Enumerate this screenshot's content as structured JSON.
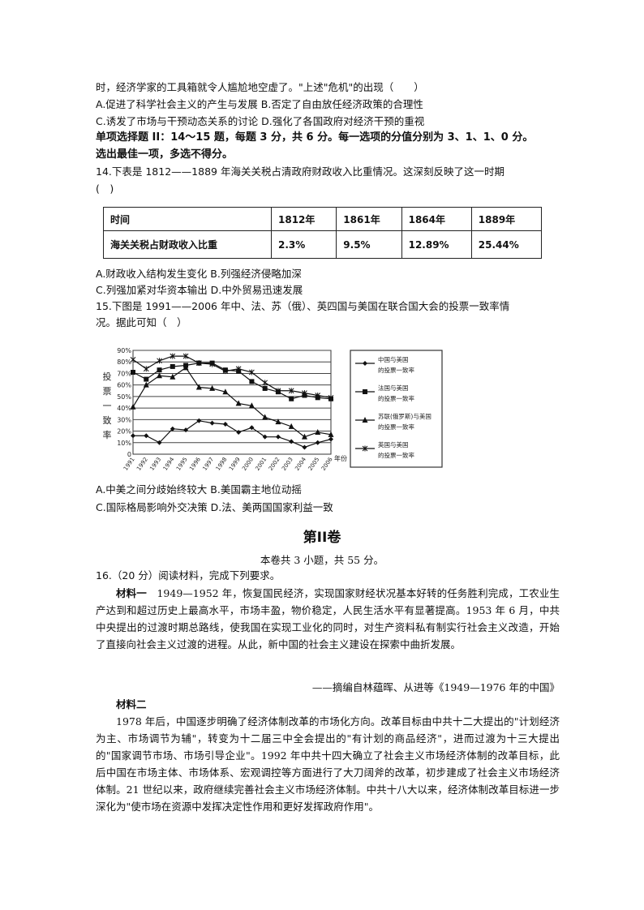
{
  "q13_tail": {
    "line": "时，经济学家的工具箱就令人尴尬地空虚了。\"上述\"危机\"的出现（　　）",
    "opt_ab": "A.促进了科学社会主义的产生与发展 B.否定了自由放任经济政策的合理性",
    "opt_cd": "C.诱发了市场与干预动态关系的讨论 D.强化了各国政府对经济干预的重视"
  },
  "section_ii": {
    "line1": "单项选择题 II：14～15 题，每题 3 分，共 6 分。每一选项的分值分别为 3、1、1、0 分。",
    "line2": "选出最佳一项，多选不得分。"
  },
  "q14": {
    "stem1": "14.下表是  1812——1889  年海关关税占清政府财政收入比重情况。这深刻反映了这一时期",
    "stem2": "(　)",
    "table": {
      "header": [
        "时间",
        "1812年",
        "1861年",
        "1864年",
        "1889年"
      ],
      "row": [
        "海关关税占财政收入比重",
        "2.3%",
        "9.5%",
        "12.89%",
        "25.44%"
      ]
    },
    "opt_ab": "A.财政收入结构发生变化 B.列强经济侵略加深",
    "opt_cd": "C.列强加紧对华资本输出 D.中外贸易迅速发展"
  },
  "q15": {
    "stem1": "15.下图是 1991——2006 年中、法、苏（俄）、英四国与美国在联合国大会的投票一致率情",
    "stem2": "况。据此可知（　）",
    "opt_ab": "A.中美之间分歧始终较大 B.美国霸主地位动摇",
    "opt_cd": "C.国际格局影响外交决策 D.法、美两国国家利益一致"
  },
  "chart_data": {
    "type": "line",
    "ylabel": "投票一致率",
    "xlabel": "年份",
    "ylim": [
      0,
      90
    ],
    "yticks": [
      "0",
      "10%",
      "20%",
      "30%",
      "40%",
      "50%",
      "60%",
      "70%",
      "80%",
      "90%"
    ],
    "categories": [
      "1991",
      "1992",
      "1993",
      "1994",
      "1995",
      "1996",
      "1997",
      "1998",
      "1999",
      "2000",
      "2001",
      "2002",
      "2003",
      "2004",
      "2005",
      "2006"
    ],
    "series": [
      {
        "name": "中国与美国的投票一致率",
        "marker": "diamond",
        "values": [
          16,
          16,
          10,
          22,
          21,
          29,
          27,
          26,
          19,
          23,
          15,
          15,
          11,
          6,
          10,
          13
        ]
      },
      {
        "name": "法国与美国的投票一致率",
        "marker": "square",
        "values": [
          71,
          65,
          73,
          76,
          77,
          79,
          79,
          73,
          72,
          63,
          57,
          54,
          48,
          51,
          49,
          48
        ]
      },
      {
        "name": "苏联(俄罗斯)与美国的投票一致率",
        "marker": "triangle",
        "values": [
          41,
          60,
          68,
          67,
          75,
          58,
          57,
          54,
          44,
          42,
          32,
          28,
          24,
          15,
          19,
          17
        ]
      },
      {
        "name": "英国与美国的投票一致率",
        "marker": "star",
        "values": [
          82,
          74,
          81,
          85,
          85,
          79,
          78,
          72,
          74,
          71,
          62,
          55,
          55,
          53,
          51,
          49
        ]
      }
    ],
    "legend": "right"
  },
  "part2": {
    "title": "第II卷",
    "sub": "本卷共 3 小题，共 55 分。"
  },
  "q16": {
    "stem": "16.（20 分）阅读材料，完成下列要求。",
    "m1_label": "材料一",
    "m1_text": "1949—1952 年，恢复国民经济，实现国家财经状况基本好转的任务胜利完成，工农业生产达到和超过历史上最高水平，市场丰盈，物价稳定，人民生活水平有显著提高。1953 年 6 月，中共中央提出的过渡时期总路线，使我国在实现工业化的同时，对生产资料私有制实行社会主义改造，开始了直接向社会主义过渡的进程。从此，新中国的社会主义建设在探索中曲折发展。",
    "m1_source": "——摘编自林蕴晖、从进等《1949—1976 年的中国》",
    "m2_label": "材料二",
    "m2_text": "1978 年后，中国逐步明确了经济体制改革的市场化方向。改革目标由中共十二大提出的\"计划经济为主、市场调节为辅\"，转变为十二届三中全会提出的\"有计划的商品经济\"，进而过渡为十三大提出的\"国家调节市场、市场引导企业\"。1992 年中共十四大确立了社会主义市场经济体制的改革目标，此后中国在市场主体、市场体系、宏观调控等方面进行了大刀阔斧的改革，初步建成了社会主义市场经济体制。21 世纪以来，政府继续完善社会主义市场经济体制。中共十八大以来，经济体制改革目标进一步深化为\"使市场在资源中发挥决定性作用和更好发挥政府作用\"。"
  }
}
